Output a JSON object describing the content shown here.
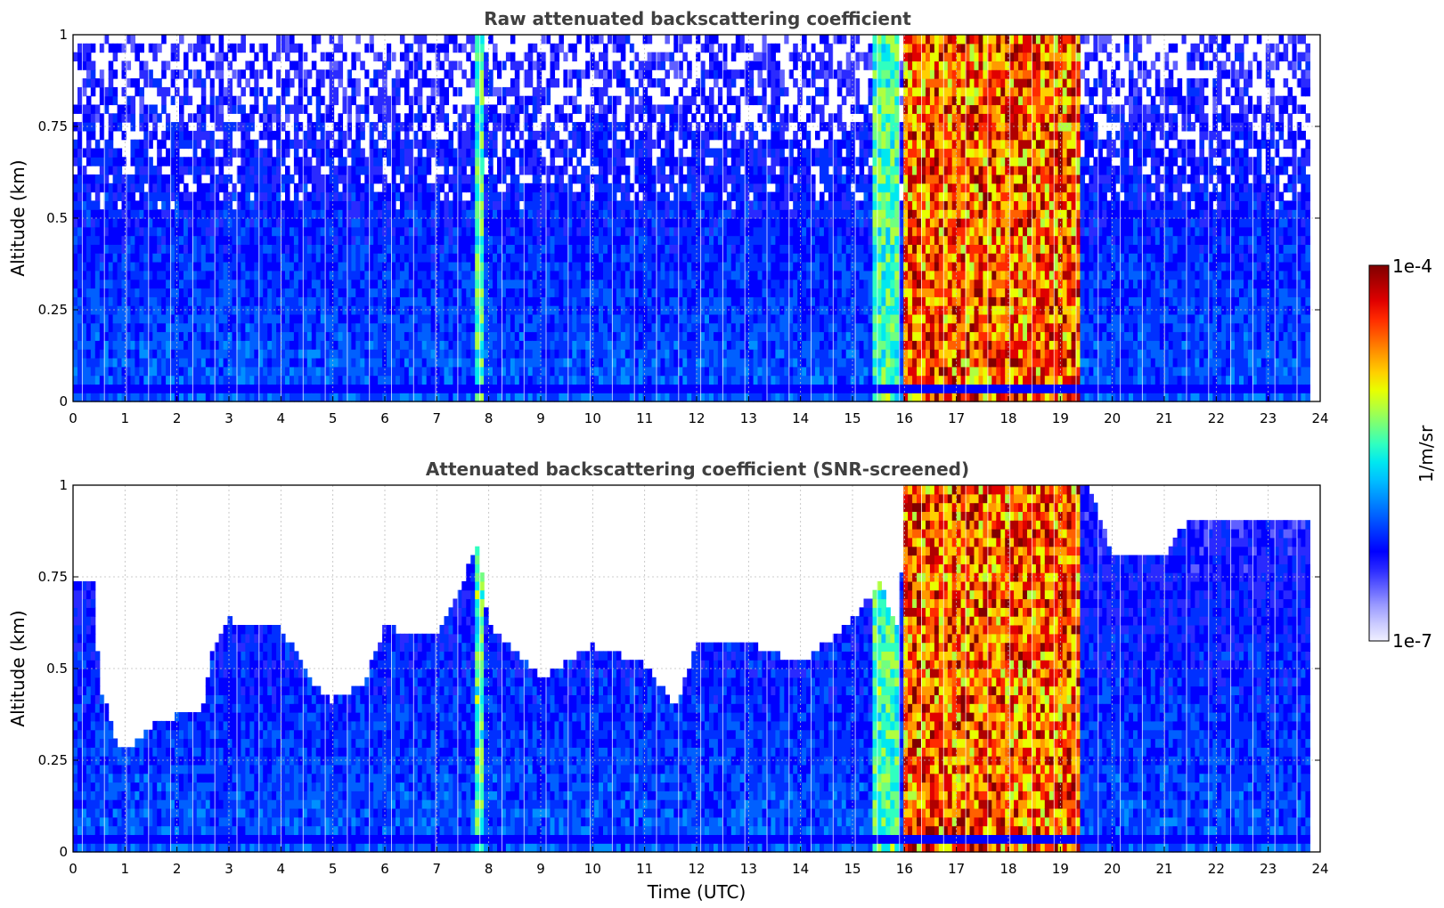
{
  "colors": {
    "background": "#ffffff",
    "axis": "#000000",
    "title": "#404040",
    "grid": "#bdbdbd"
  },
  "colormap": [
    "#f0f0ff",
    "#c8c8ff",
    "#9a9aff",
    "#6060ff",
    "#2a2aff",
    "#0000ff",
    "#0030ff",
    "#0060ff",
    "#0090ff",
    "#00c0ff",
    "#00e8f0",
    "#30ffc0",
    "#70ff80",
    "#b0ff40",
    "#e8ff00",
    "#ffd000",
    "#ff9a00",
    "#ff6000",
    "#ff2a00",
    "#e00000",
    "#b00000",
    "#800000"
  ],
  "chart_data": [
    {
      "type": "heatmap",
      "title": "Raw attenuated backscattering coefficient",
      "xlabel": "",
      "ylabel": "Altitude (km)",
      "xlim": [
        0,
        24
      ],
      "ylim": [
        0,
        1
      ],
      "x_ticks": [
        "0",
        "1",
        "2",
        "3",
        "4",
        "5",
        "6",
        "7",
        "8",
        "9",
        "10",
        "11",
        "12",
        "13",
        "14",
        "15",
        "16",
        "17",
        "18",
        "19",
        "20",
        "21",
        "22",
        "23",
        "24"
      ],
      "y_ticks": [
        "0",
        "0.25",
        "0.5",
        "0.75",
        "1"
      ],
      "grid": true,
      "screened": false,
      "data_end_hour": 23.8,
      "cloud_bands": [
        {
          "start": 16.0,
          "end": 19.4,
          "level": "high"
        },
        {
          "start": 15.4,
          "end": 15.9,
          "level": "medium"
        },
        {
          "start": 7.7,
          "end": 7.9,
          "level": "medium"
        }
      ]
    },
    {
      "type": "heatmap",
      "title": "Attenuated backscattering coefficient (SNR-screened)",
      "xlabel": "Time (UTC)",
      "ylabel": "Altitude (km)",
      "xlim": [
        0,
        24
      ],
      "ylim": [
        0,
        1
      ],
      "x_ticks": [
        "0",
        "1",
        "2",
        "3",
        "4",
        "5",
        "6",
        "7",
        "8",
        "9",
        "10",
        "11",
        "12",
        "13",
        "14",
        "15",
        "16",
        "17",
        "18",
        "19",
        "20",
        "21",
        "22",
        "23",
        "24"
      ],
      "y_ticks": [
        "0",
        "0.25",
        "0.5",
        "0.75",
        "1"
      ],
      "grid": true,
      "screened": true,
      "data_end_hour": 23.8,
      "boundary_layer_top_km": [
        [
          0,
          0.72
        ],
        [
          0.4,
          0.72
        ],
        [
          0.5,
          0.45
        ],
        [
          0.8,
          0.3
        ],
        [
          1.0,
          0.26
        ],
        [
          1.5,
          0.33
        ],
        [
          2.0,
          0.36
        ],
        [
          2.5,
          0.38
        ],
        [
          2.7,
          0.55
        ],
        [
          3.0,
          0.62
        ],
        [
          4.0,
          0.6
        ],
        [
          4.6,
          0.45
        ],
        [
          5.0,
          0.4
        ],
        [
          5.6,
          0.45
        ],
        [
          6.0,
          0.6
        ],
        [
          7.0,
          0.58
        ],
        [
          7.8,
          0.82
        ],
        [
          8.0,
          0.6
        ],
        [
          9.0,
          0.46
        ],
        [
          10.0,
          0.55
        ],
        [
          11.0,
          0.5
        ],
        [
          11.6,
          0.38
        ],
        [
          12.0,
          0.55
        ],
        [
          13.0,
          0.56
        ],
        [
          14.0,
          0.5
        ],
        [
          15.0,
          0.62
        ],
        [
          15.5,
          0.72
        ],
        [
          15.9,
          0.6
        ],
        [
          16.0,
          1.0
        ],
        [
          19.5,
          1.0
        ],
        [
          20.0,
          0.8
        ],
        [
          21.0,
          0.8
        ],
        [
          21.5,
          0.9
        ],
        [
          23.8,
          0.9
        ]
      ],
      "cloud_bands": [
        {
          "start": 16.0,
          "end": 19.4,
          "level": "high"
        },
        {
          "start": 15.4,
          "end": 15.9,
          "level": "medium"
        },
        {
          "start": 7.7,
          "end": 7.9,
          "level": "medium"
        }
      ]
    },
    {
      "type": "colorbar",
      "max_label": "1e-4",
      "min_label": "1e-7",
      "unit_label": "1/m/sr",
      "scale": "log",
      "range": [
        1e-07,
        0.0001
      ]
    }
  ]
}
